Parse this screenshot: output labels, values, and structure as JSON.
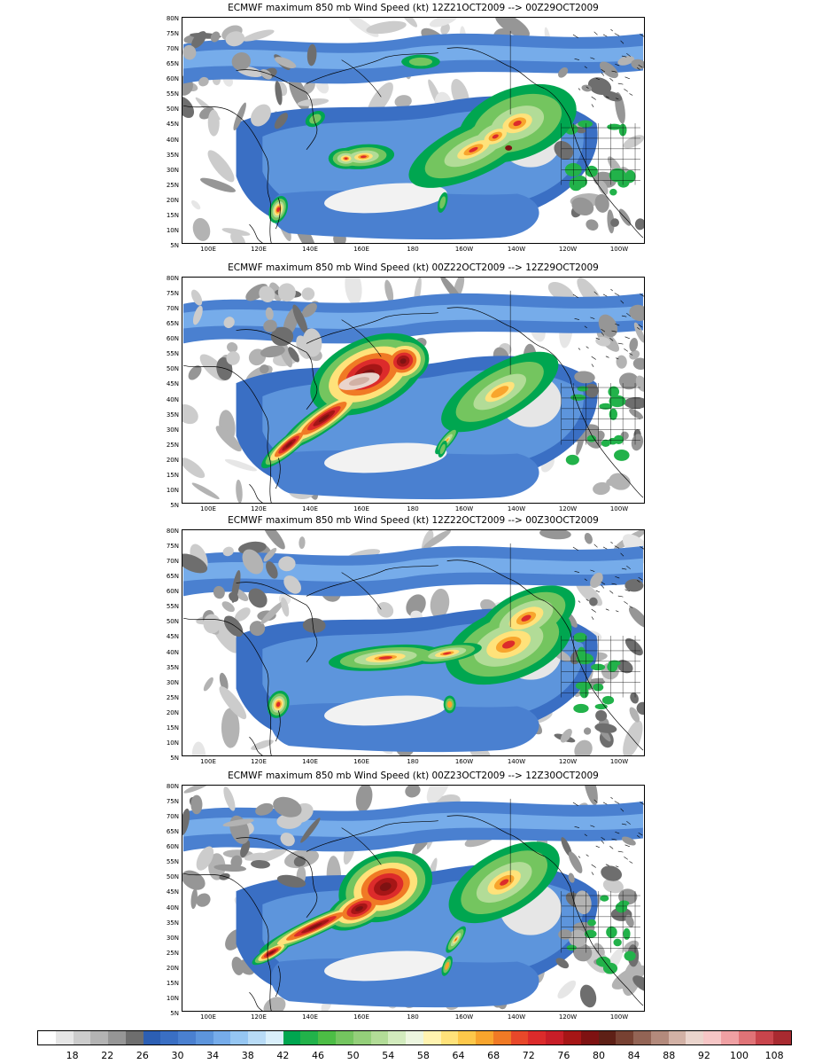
{
  "panels": [
    {
      "title": "ECMWF maximum 850 mb Wind Speed (kt) 12Z21OCT2009 --> 00Z29OCT2009",
      "variant": "a"
    },
    {
      "title": "ECMWF maximum 850 mb Wind Speed (kt) 00Z22OCT2009 --> 12Z29OCT2009",
      "variant": "b"
    },
    {
      "title": "ECMWF maximum 850 mb Wind Speed (kt) 12Z22OCT2009 --> 00Z30OCT2009",
      "variant": "c"
    },
    {
      "title": "ECMWF maximum 850 mb Wind Speed (kt) 00Z23OCT2009 --> 12Z30OCT2009",
      "variant": "d"
    }
  ],
  "lat_labels": [
    "80N",
    "75N",
    "70N",
    "65N",
    "60N",
    "55N",
    "50N",
    "45N",
    "40N",
    "35N",
    "30N",
    "25N",
    "20N",
    "15N",
    "10N",
    "5N"
  ],
  "lon_labels": [
    "100E",
    "120E",
    "140E",
    "160E",
    "180",
    "160W",
    "140W",
    "120W",
    "100W"
  ],
  "colorbar": {
    "labels": [
      "18",
      "22",
      "26",
      "30",
      "34",
      "38",
      "42",
      "46",
      "50",
      "54",
      "58",
      "64",
      "68",
      "72",
      "76",
      "80",
      "84",
      "88",
      "92",
      "100",
      "108"
    ],
    "colors": [
      "#ffffff",
      "#e6e6e6",
      "#cccccc",
      "#b3b3b3",
      "#969696",
      "#6e6e6e",
      "#2c5fb4",
      "#3a6fc4",
      "#4a80d0",
      "#5d95dc",
      "#76acea",
      "#95c6f2",
      "#b8dbf6",
      "#d9effb",
      "#00a650",
      "#22b24a",
      "#4cbd45",
      "#74c55f",
      "#94cf7a",
      "#b2dc97",
      "#d2ebbd",
      "#ecf6df",
      "#fff3b0",
      "#ffe27a",
      "#fdc84a",
      "#f8a52d",
      "#f07a25",
      "#e8482a",
      "#dc2b2b",
      "#c81e28",
      "#a61616",
      "#7e1212",
      "#5e2016",
      "#774132",
      "#936455",
      "#b38a7c",
      "#d2b1a5",
      "#ead4cc",
      "#f6c6c6",
      "#efa0a3",
      "#e07377",
      "#c9454c",
      "#a82a30"
    ]
  }
}
